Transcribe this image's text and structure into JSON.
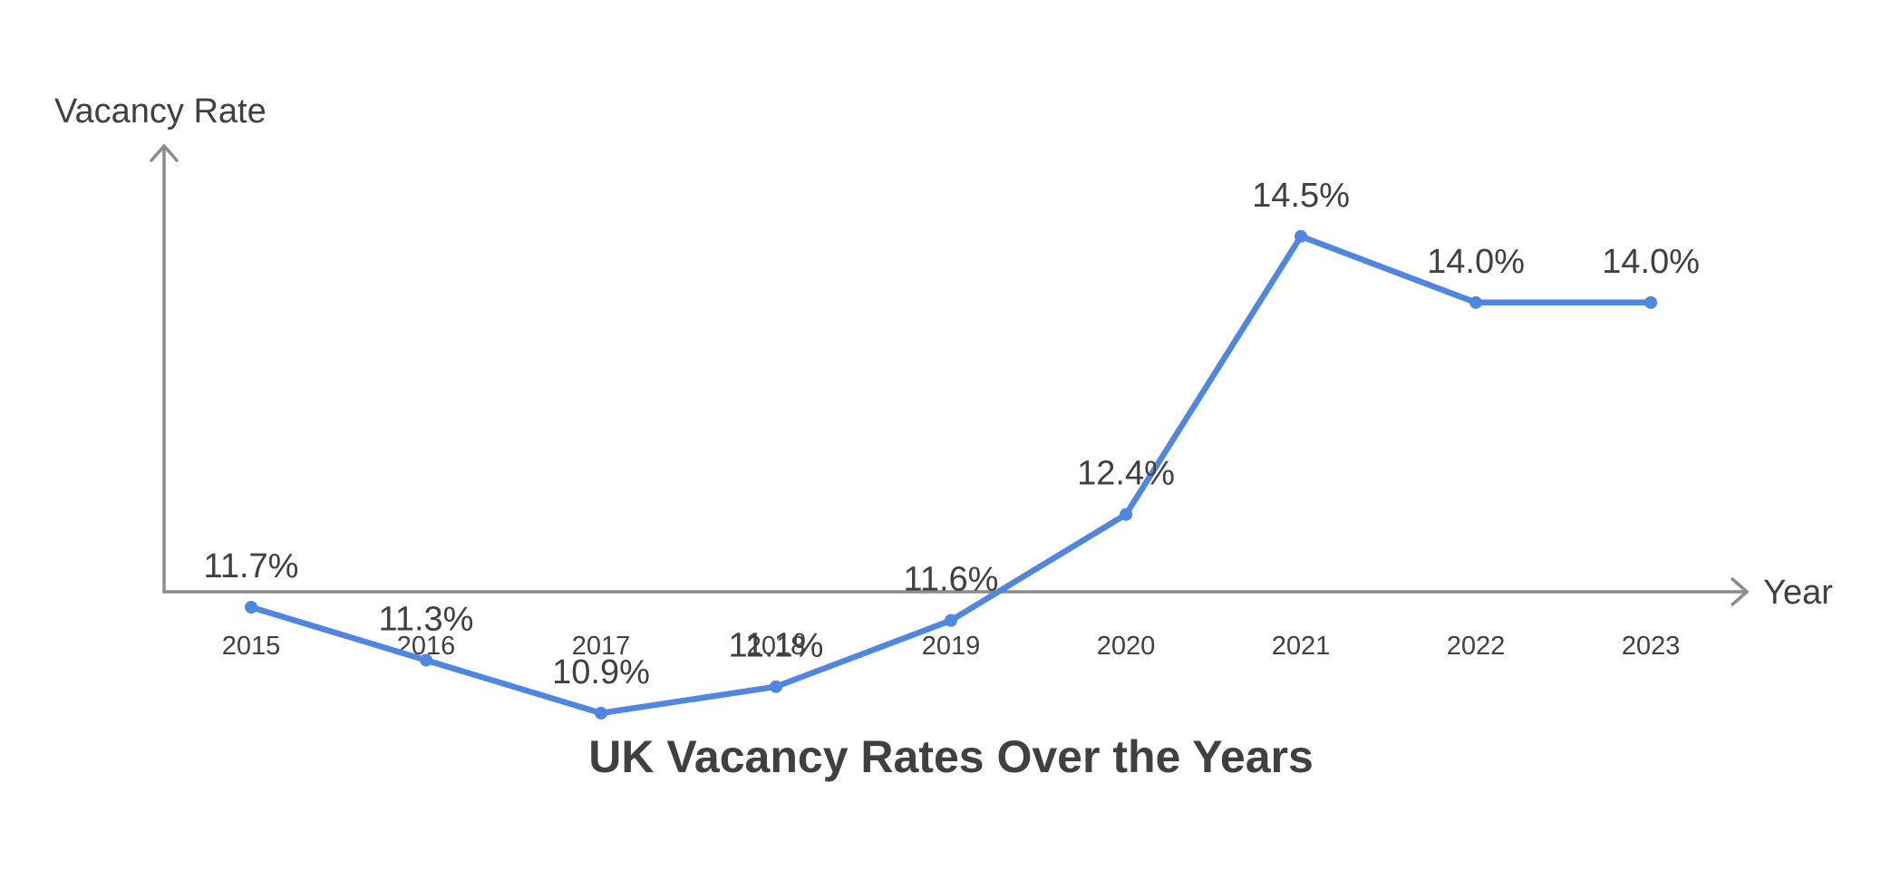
{
  "chart_data": {
    "type": "line",
    "title": "UK Vacancy Rates Over the Years",
    "xlabel": "Year",
    "ylabel": "Vacancy Rate",
    "categories": [
      "2015",
      "2016",
      "2017",
      "2018",
      "2019",
      "2020",
      "2021",
      "2022",
      "2023"
    ],
    "series": [
      {
        "values": [
          11.7,
          11.3,
          10.9,
          11.1,
          11.6,
          12.4,
          14.5,
          14.0,
          14.0
        ],
        "labels": [
          "11.7%",
          "11.3%",
          "10.9%",
          "11.1%",
          "11.6%",
          "12.4%",
          "14.5%",
          "14.0%",
          "14.0%"
        ],
        "color": "#4f86e0"
      }
    ],
    "ylim": [
      10.4,
      15.6
    ],
    "grid": false,
    "legend": "none",
    "axis_color": "#8c8c8c",
    "text_color": "#404040"
  }
}
